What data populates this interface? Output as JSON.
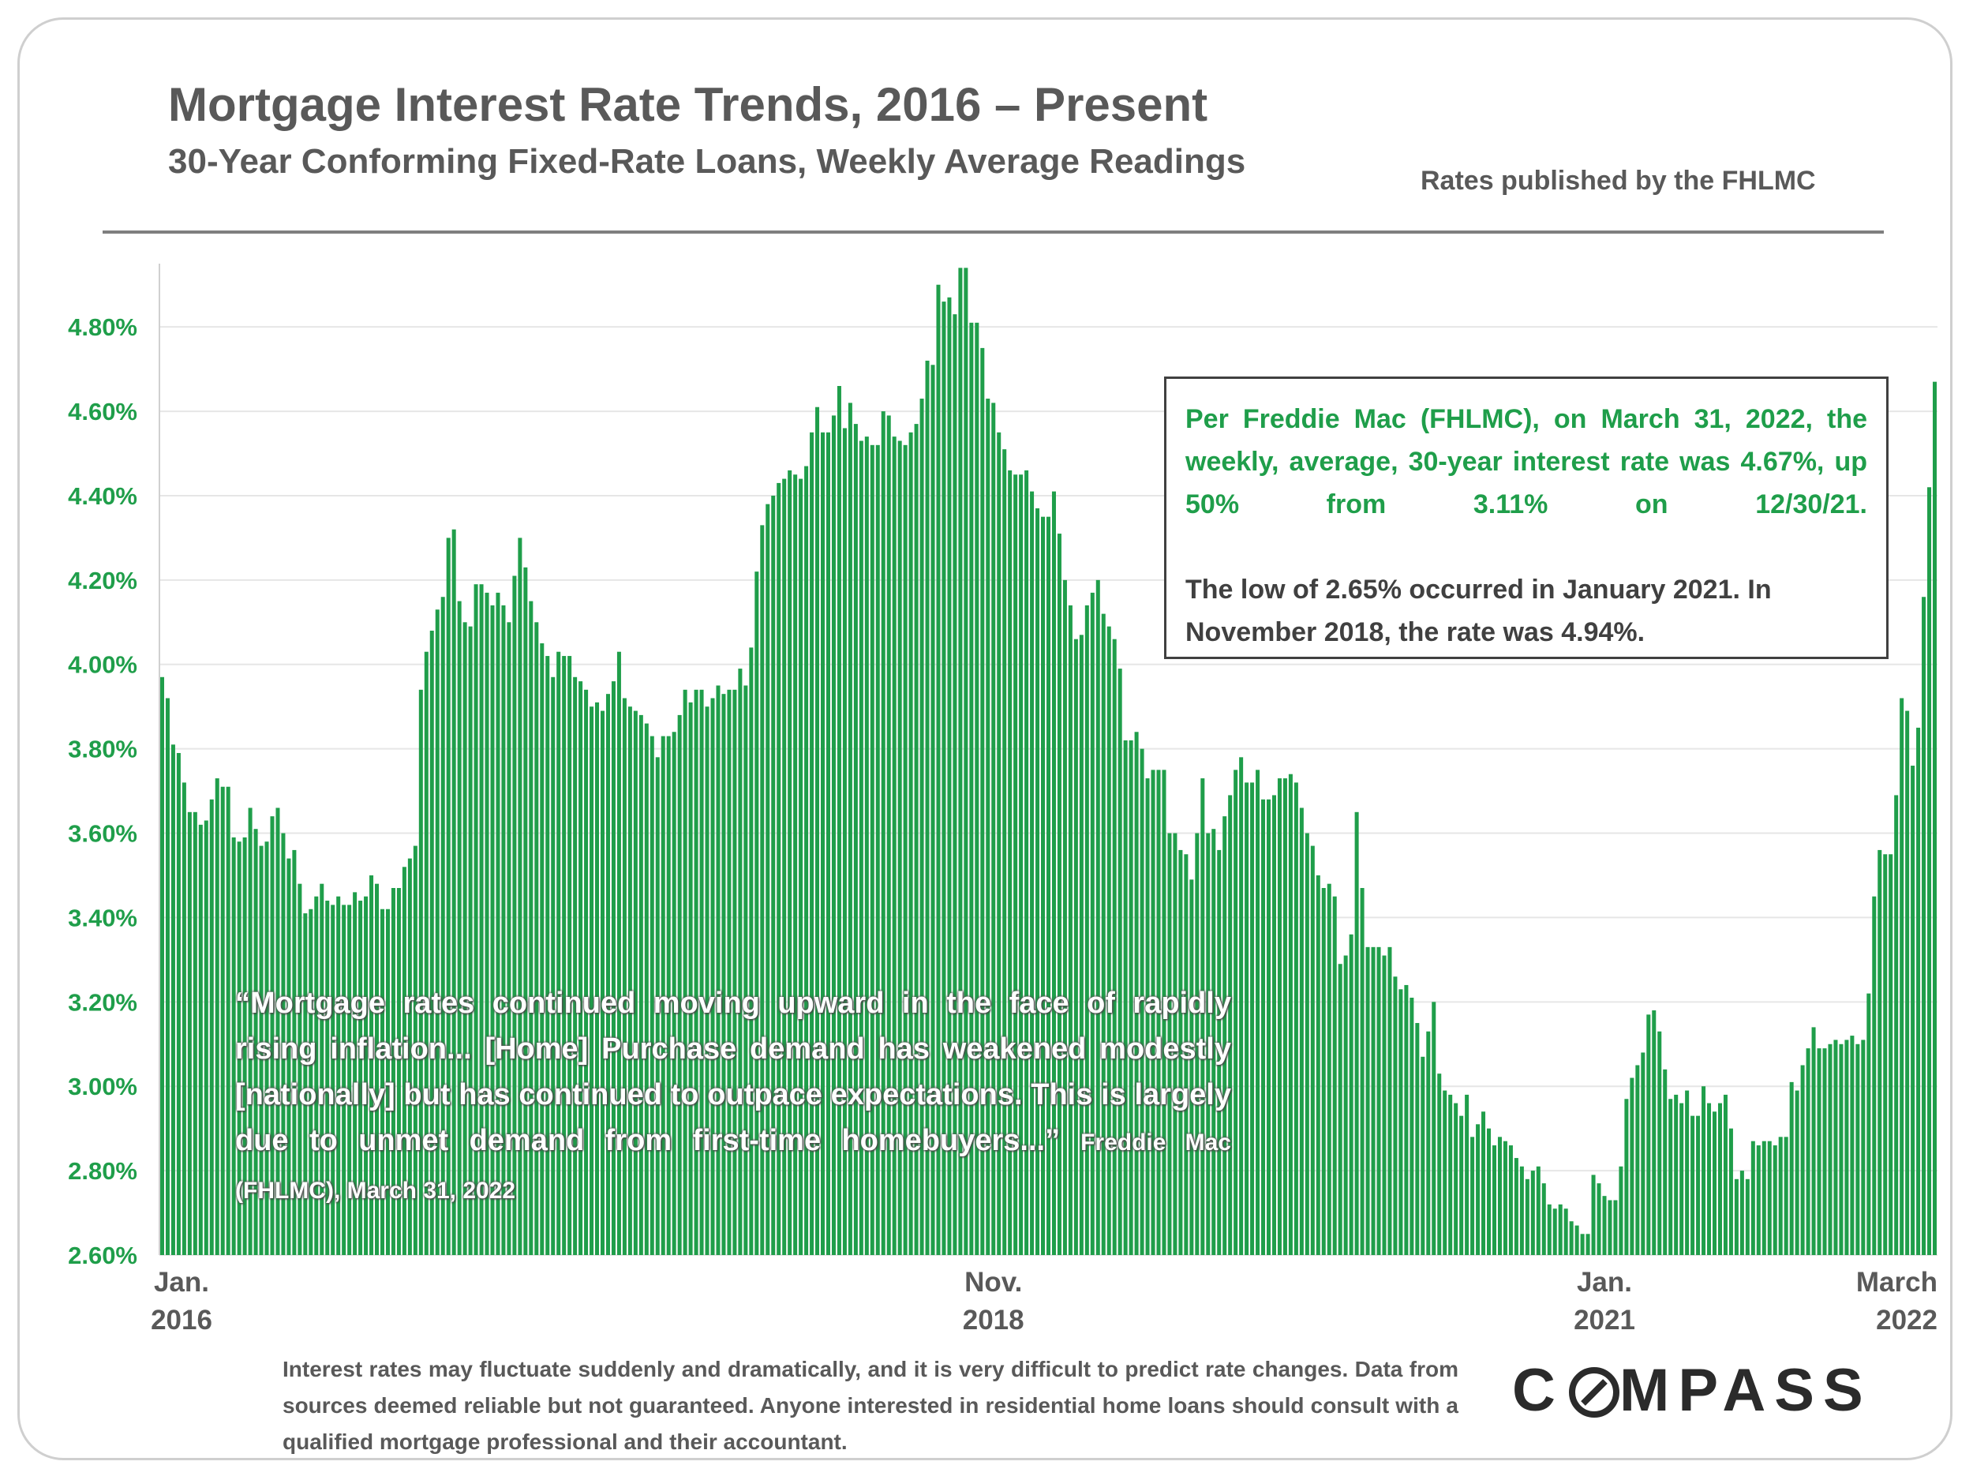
{
  "header": {
    "title": "Mortgage Interest Rate Trends, 2016 – Present",
    "subtitle": "30-Year Conforming Fixed-Rate Loans, Weekly Average Readings",
    "source": "Rates published by the FHLMC"
  },
  "callout": {
    "green_text": "Per Freddie Mac (FHLMC), on March 31, 2022, the weekly, average, 30-year interest rate was 4.67%, up 50% from 3.11% on 12/30/21.",
    "grey_text": "The low of 2.65% occurred in January 2021. In November 2018, the rate was 4.94%."
  },
  "quote": {
    "text": "“Mortgage rates continued moving upward in the face of rapidly rising inflation... [Home] Purchase demand has weakened modestly [nationally] but has continued to outpace expectations. This is largely due to unmet demand from first-time homebuyers...”",
    "attribution": "Freddie Mac (FHLMC), March 31, 2022"
  },
  "footer": {
    "disclaimer": "Interest rates may fluctuate suddenly and dramatically, and it is very difficult to predict rate changes. Data from sources deemed reliable but not guaranteed. Anyone interested in residential home loans should consult with a qualified mortgage professional and their accountant.",
    "logo_before": "C",
    "logo_after": "MPASS"
  },
  "colors": {
    "bar": "#1f9e4a",
    "axis_text": "#1f9e4a",
    "text": "#595959",
    "grid": "#e6e6e6"
  },
  "chart_data": {
    "type": "bar",
    "title": "Mortgage Interest Rate Trends, 2016 – Present",
    "ylim": [
      2.6,
      4.95
    ],
    "y_ticks": [
      2.6,
      2.8,
      3.0,
      3.2,
      3.4,
      3.6,
      3.8,
      4.0,
      4.2,
      4.4,
      4.6,
      4.8
    ],
    "y_tick_labels": [
      "2.60%",
      "2.80%",
      "3.00%",
      "3.20%",
      "3.40%",
      "3.60%",
      "3.80%",
      "4.00%",
      "4.20%",
      "4.40%",
      "4.60%",
      "4.80%"
    ],
    "x_labels": [
      {
        "index": 0,
        "line1": "Jan.",
        "line2": "2016"
      },
      {
        "index": 151,
        "line1": "Nov.",
        "line2": "2018"
      },
      {
        "index": 262,
        "line1": "Jan.",
        "line2": "2021"
      },
      {
        "index": 326,
        "line1": "March",
        "line2": "2022"
      }
    ],
    "grid": true,
    "values": [
      3.97,
      3.92,
      3.81,
      3.79,
      3.72,
      3.65,
      3.65,
      3.62,
      3.63,
      3.68,
      3.73,
      3.71,
      3.71,
      3.59,
      3.58,
      3.59,
      3.66,
      3.61,
      3.57,
      3.58,
      3.64,
      3.66,
      3.6,
      3.54,
      3.56,
      3.48,
      3.41,
      3.42,
      3.45,
      3.48,
      3.44,
      3.43,
      3.45,
      3.43,
      3.43,
      3.46,
      3.44,
      3.45,
      3.5,
      3.48,
      3.42,
      3.42,
      3.47,
      3.47,
      3.52,
      3.54,
      3.57,
      3.94,
      4.03,
      4.08,
      4.13,
      4.16,
      4.3,
      4.32,
      4.15,
      4.1,
      4.09,
      4.19,
      4.19,
      4.17,
      4.14,
      4.17,
      4.14,
      4.1,
      4.21,
      4.3,
      4.23,
      4.15,
      4.1,
      4.05,
      4.02,
      3.97,
      4.03,
      4.02,
      4.02,
      3.97,
      3.96,
      3.94,
      3.9,
      3.91,
      3.89,
      3.93,
      3.96,
      4.03,
      3.92,
      3.9,
      3.89,
      3.88,
      3.86,
      3.83,
      3.78,
      3.83,
      3.83,
      3.84,
      3.88,
      3.94,
      3.91,
      3.94,
      3.94,
      3.9,
      3.92,
      3.95,
      3.93,
      3.94,
      3.94,
      3.99,
      3.95,
      4.04,
      4.22,
      4.33,
      4.38,
      4.4,
      4.43,
      4.44,
      4.46,
      4.45,
      4.44,
      4.47,
      4.55,
      4.61,
      4.55,
      4.55,
      4.59,
      4.66,
      4.56,
      4.62,
      4.57,
      4.53,
      4.54,
      4.52,
      4.52,
      4.6,
      4.59,
      4.54,
      4.53,
      4.52,
      4.55,
      4.57,
      4.63,
      4.72,
      4.71,
      4.9,
      4.86,
      4.87,
      4.83,
      4.94,
      4.94,
      4.81,
      4.81,
      4.75,
      4.63,
      4.62,
      4.55,
      4.51,
      4.46,
      4.45,
      4.45,
      4.46,
      4.41,
      4.37,
      4.35,
      4.35,
      4.41,
      4.31,
      4.2,
      4.14,
      4.06,
      4.07,
      4.14,
      4.17,
      4.2,
      4.12,
      4.09,
      4.06,
      3.99,
      3.82,
      3.82,
      3.84,
      3.8,
      3.73,
      3.75,
      3.75,
      3.75,
      3.6,
      3.6,
      3.56,
      3.55,
      3.49,
      3.6,
      3.73,
      3.6,
      3.61,
      3.56,
      3.64,
      3.69,
      3.75,
      3.78,
      3.72,
      3.72,
      3.75,
      3.68,
      3.68,
      3.69,
      3.73,
      3.73,
      3.74,
      3.72,
      3.66,
      3.6,
      3.57,
      3.5,
      3.47,
      3.48,
      3.45,
      3.29,
      3.31,
      3.36,
      3.65,
      3.47,
      3.33,
      3.33,
      3.33,
      3.31,
      3.33,
      3.26,
      3.23,
      3.24,
      3.21,
      3.15,
      3.07,
      3.13,
      3.2,
      3.03,
      2.99,
      2.98,
      2.96,
      2.93,
      2.98,
      2.88,
      2.91,
      2.94,
      2.9,
      2.86,
      2.88,
      2.87,
      2.86,
      2.83,
      2.81,
      2.78,
      2.8,
      2.81,
      2.77,
      2.72,
      2.71,
      2.72,
      2.71,
      2.68,
      2.67,
      2.65,
      2.65,
      2.79,
      2.77,
      2.74,
      2.73,
      2.73,
      2.81,
      2.97,
      3.02,
      3.05,
      3.08,
      3.17,
      3.18,
      3.13,
      3.04,
      2.97,
      2.98,
      2.96,
      2.99,
      2.93,
      2.93,
      3.0,
      2.96,
      2.94,
      2.96,
      2.98,
      2.9,
      2.78,
      2.8,
      2.78,
      2.87,
      2.86,
      2.87,
      2.87,
      2.86,
      2.88,
      2.88,
      3.01,
      2.99,
      3.05,
      3.09,
      3.14,
      3.09,
      3.09,
      3.1,
      3.11,
      3.1,
      3.11,
      3.12,
      3.1,
      3.11,
      3.22,
      3.45,
      3.56,
      3.55,
      3.55,
      3.69,
      3.92,
      3.89,
      3.76,
      3.85,
      4.16,
      4.42,
      4.67
    ]
  }
}
